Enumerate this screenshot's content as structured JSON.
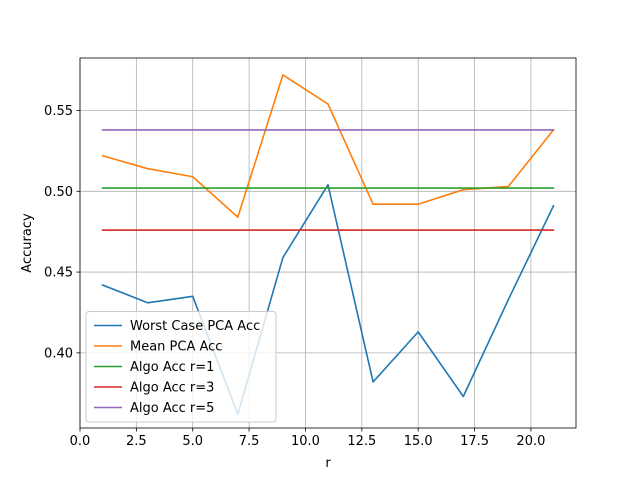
{
  "chart_data": {
    "type": "line",
    "title": "",
    "xlabel": "r",
    "ylabel": "Accuracy",
    "xlim": [
      0,
      22
    ],
    "ylim": [
      0.3535,
      0.5825
    ],
    "xticks": [
      0,
      2.5,
      5,
      7.5,
      10,
      12.5,
      15,
      17.5,
      20
    ],
    "xtick_labels": [
      "0.0",
      "2.5",
      "5.0",
      "7.5",
      "10.0",
      "12.5",
      "15.0",
      "17.5",
      "20.0"
    ],
    "yticks": [
      0.4,
      0.45,
      0.5,
      0.55
    ],
    "ytick_labels": [
      "0.40",
      "0.45",
      "0.50",
      "0.55"
    ],
    "grid": true,
    "legend_position": "lower-left",
    "series": [
      {
        "name": "Worst Case PCA Acc",
        "color": "#1f77b4",
        "x": [
          1,
          3,
          5,
          7,
          9,
          11,
          13,
          15,
          17,
          19,
          21
        ],
        "y": [
          0.442,
          0.431,
          0.435,
          0.362,
          0.459,
          0.504,
          0.382,
          0.413,
          0.373,
          0.433,
          0.491
        ]
      },
      {
        "name": "Mean PCA Acc",
        "color": "#ff7f0e",
        "x": [
          1,
          3,
          5,
          7,
          9,
          11,
          13,
          15,
          17,
          19,
          21
        ],
        "y": [
          0.522,
          0.514,
          0.509,
          0.484,
          0.572,
          0.554,
          0.492,
          0.492,
          0.501,
          0.503,
          0.538
        ]
      },
      {
        "name": "Algo Acc r=1",
        "color": "#2ca02c",
        "x": [
          1,
          21
        ],
        "y": [
          0.502,
          0.502
        ]
      },
      {
        "name": "Algo Acc r=3",
        "color": "#d62728",
        "x": [
          1,
          21
        ],
        "y": [
          0.476,
          0.476
        ]
      },
      {
        "name": "Algo Acc r=5",
        "color": "#9467bd",
        "x": [
          1,
          21
        ],
        "y": [
          0.538,
          0.538
        ]
      }
    ]
  }
}
